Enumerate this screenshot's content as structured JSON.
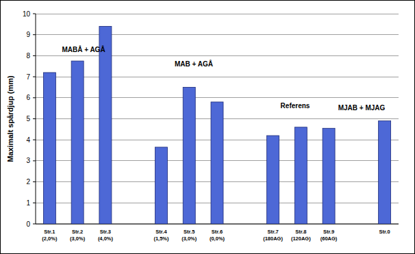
{
  "chart_data": {
    "type": "bar",
    "y_label": "Maximalt spårdjup (mm)",
    "categories": [
      "Str.1\n(2,0%)",
      "Str.2\n(3,0%)",
      "Str.3\n(4,0%)",
      null,
      "Str.4\n(1,5%)",
      "Str.5\n(3,0%)",
      "Str.6\n(0,0%)",
      null,
      "Str.7\n(180AG)",
      "Str.8\n(120AG)",
      "Str.9\n(60AG)",
      null,
      "Str.0"
    ],
    "values": [
      7.2,
      7.75,
      9.4,
      null,
      3.65,
      6.5,
      5.8,
      null,
      4.2,
      4.6,
      4.55,
      null,
      4.9
    ],
    "color": "#4d68d6",
    "annotations": [
      "MABÅ + AGÅ",
      "MAB + AGÅ",
      "Referens",
      "MJAB + MJAG"
    ],
    "ylim": [
      0,
      10
    ],
    "yticks": [
      0,
      1,
      2,
      3,
      4,
      5,
      6,
      7,
      8,
      9,
      10
    ],
    "grid": true
  }
}
